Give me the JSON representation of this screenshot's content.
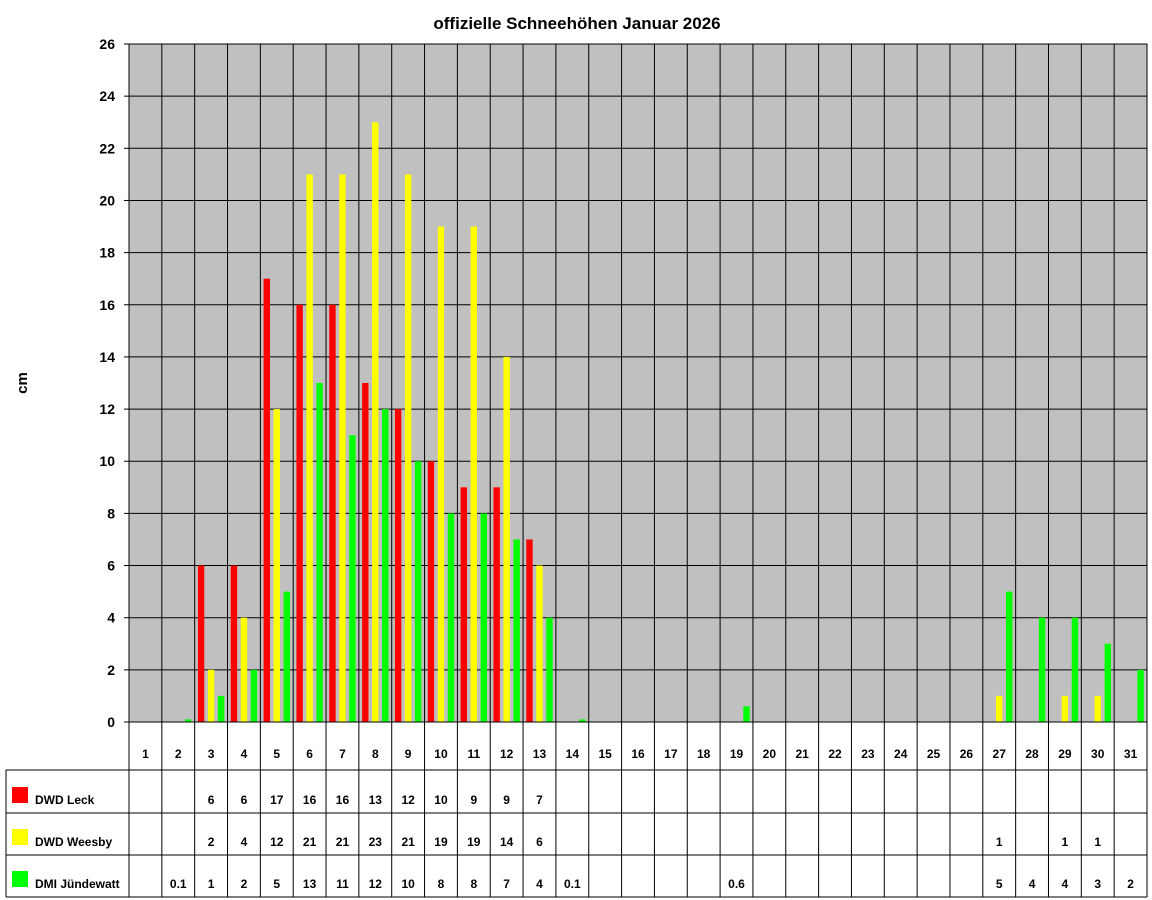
{
  "chart_data": {
    "type": "bar",
    "title": "offizielle Schneehöhen Januar 2026",
    "xlabel": "",
    "ylabel": "cm",
    "ylim": [
      0,
      26
    ],
    "ytick_step": 2,
    "grid": true,
    "legend_placement": "data-table-left",
    "categories": [
      "1",
      "2",
      "3",
      "4",
      "5",
      "6",
      "7",
      "8",
      "9",
      "10",
      "11",
      "12",
      "13",
      "14",
      "15",
      "16",
      "17",
      "18",
      "19",
      "20",
      "21",
      "22",
      "23",
      "24",
      "25",
      "26",
      "27",
      "28",
      "29",
      "30",
      "31"
    ],
    "series": [
      {
        "name": "DWD Leck",
        "color": "#ff0000",
        "values": [
          null,
          null,
          6,
          6,
          17,
          16,
          16,
          13,
          12,
          10,
          9,
          9,
          7,
          null,
          null,
          null,
          null,
          null,
          null,
          null,
          null,
          null,
          null,
          null,
          null,
          null,
          null,
          null,
          null,
          null,
          null
        ]
      },
      {
        "name": "DWD Weesby",
        "color": "#ffff00",
        "values": [
          null,
          null,
          2,
          4,
          12,
          21,
          21,
          23,
          21,
          19,
          19,
          14,
          6,
          null,
          null,
          null,
          null,
          null,
          null,
          null,
          null,
          null,
          null,
          null,
          null,
          null,
          1,
          null,
          1,
          1,
          null
        ]
      },
      {
        "name": "DMI Jündewatt",
        "color": "#00ff00",
        "values": [
          null,
          0.1,
          1,
          2,
          5,
          13,
          11,
          12,
          10,
          8,
          8,
          7,
          4,
          0.1,
          null,
          null,
          null,
          null,
          0.6,
          null,
          null,
          null,
          null,
          null,
          null,
          null,
          5,
          4,
          4,
          3,
          2
        ]
      }
    ]
  },
  "colors": {
    "plot_bg": "#c0c0c0",
    "grid": "#000000",
    "border": "#000000"
  }
}
